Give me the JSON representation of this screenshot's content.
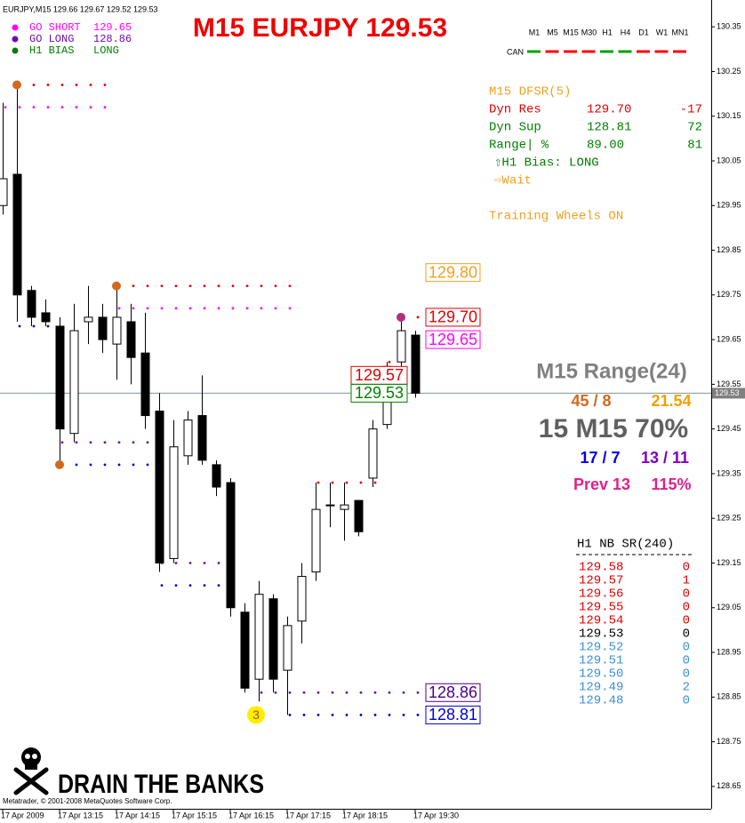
{
  "symbol_header": "EURJPY,M15  129.66 129.67 129.52 129.53",
  "signals": [
    {
      "label": "GO SHORT",
      "value": "129.65",
      "color": "#ff00ff"
    },
    {
      "label": "GO LONG",
      "value": "128.86",
      "color": "#6a0dad"
    },
    {
      "label": "H1 BIAS",
      "value": "LONG",
      "color": "#008000"
    }
  ],
  "timeframes": {
    "row_label": "CAN",
    "items": [
      {
        "label": "M1",
        "color": "#00a000"
      },
      {
        "label": "M5",
        "color": "#ff0000"
      },
      {
        "label": "M15",
        "color": "#ff0000"
      },
      {
        "label": "M30",
        "color": "#ff0000"
      },
      {
        "label": "H1",
        "color": "#00a000"
      },
      {
        "label": "H4",
        "color": "#00a000"
      },
      {
        "label": "D1",
        "color": "#ff0000"
      },
      {
        "label": "W1",
        "color": "#ff0000"
      },
      {
        "label": "MN1",
        "color": "#ff0000"
      }
    ]
  },
  "dfsr_panel": {
    "title": "M15 DFSR(5)",
    "rows": [
      {
        "cells": [
          "Dyn Res",
          "129.70",
          "-17"
        ],
        "color": "#e00000"
      },
      {
        "cells": [
          "Dyn Sup",
          "128.81",
          "72"
        ],
        "color": "#008000"
      },
      {
        "cells": [
          "Range| %",
          "89.00",
          "81"
        ],
        "color": "#008000"
      }
    ],
    "bias": "⇧H1 Bias: LONG",
    "action": "⇨Wait",
    "note": "Training Wheels ON"
  },
  "range_panel": {
    "title": "M15 Range(24)",
    "ratio": "45 / 8",
    "pips": "21.54",
    "main": "15  M15 70%",
    "count_a": "17 / 7",
    "count_b": "13 / 11",
    "prev": "Prev 13",
    "prev_pct": "115%"
  },
  "h1_table": {
    "title": "H1  NB  SR(240)",
    "rows": [
      {
        "cells": [
          "129.58",
          "0"
        ],
        "color": "#e00000"
      },
      {
        "cells": [
          "129.57",
          "1"
        ],
        "color": "#e00000"
      },
      {
        "cells": [
          "129.56",
          "0"
        ],
        "color": "#e00000"
      },
      {
        "cells": [
          "129.55",
          "0"
        ],
        "color": "#e00000"
      },
      {
        "cells": [
          "129.54",
          "0"
        ],
        "color": "#e00000"
      },
      {
        "cells": [
          "129.53",
          "0"
        ],
        "color": "#000000"
      },
      {
        "cells": [
          "129.52",
          "0"
        ],
        "color": "#3a8fd8"
      },
      {
        "cells": [
          "129.51",
          "0"
        ],
        "color": "#3a8fd8"
      },
      {
        "cells": [
          "129.50",
          "0"
        ],
        "color": "#3a8fd8"
      },
      {
        "cells": [
          "129.49",
          "2"
        ],
        "color": "#3a8fd8"
      },
      {
        "cells": [
          "129.48",
          "0"
        ],
        "color": "#3a8fd8"
      }
    ]
  },
  "logo": "DRAIN THE BANKS",
  "copyright": "Metatrader, © 2001-2008 MetaQuotes Software Corp.",
  "chart_data": {
    "type": "candlestick",
    "title": "M15 EURJPY 129.53",
    "categories": [
      "17 Apr 2009",
      null,
      null,
      null,
      "17 Apr 13:15",
      null,
      null,
      null,
      "17 Apr 14:15",
      null,
      null,
      null,
      "17 Apr 15:15",
      null,
      null,
      null,
      "17 Apr 16:15",
      null,
      null,
      null,
      "17 Apr 17:15",
      null,
      null,
      null,
      "17 Apr 18:15",
      null,
      null,
      null,
      null,
      "17 Apr 19:30"
    ],
    "open": [
      129.95,
      130.02,
      129.76,
      129.71,
      129.68,
      129.44,
      129.69,
      129.7,
      129.64,
      129.69,
      129.62,
      129.49,
      129.16,
      129.39,
      129.48,
      129.37,
      129.33,
      129.04,
      128.89,
      129.07,
      128.91,
      129.02,
      129.13,
      129.28,
      129.27,
      129.29,
      129.34,
      129.46,
      129.6,
      129.66
    ],
    "high": [
      130.18,
      130.22,
      129.77,
      129.74,
      129.7,
      129.73,
      129.77,
      129.73,
      129.77,
      129.73,
      129.71,
      129.53,
      129.47,
      129.49,
      129.57,
      129.38,
      129.34,
      129.06,
      129.11,
      129.08,
      129.03,
      129.15,
      129.33,
      129.33,
      129.33,
      129.29,
      129.47,
      129.6,
      129.7,
      129.67
    ],
    "low": [
      129.93,
      129.69,
      129.68,
      129.68,
      129.37,
      129.42,
      129.64,
      129.62,
      129.56,
      129.55,
      129.45,
      129.13,
      129.15,
      129.37,
      129.37,
      129.3,
      129.03,
      128.86,
      128.84,
      128.86,
      128.81,
      128.97,
      129.11,
      129.23,
      129.2,
      129.21,
      129.32,
      129.45,
      129.58,
      129.52
    ],
    "close": [
      130.01,
      129.75,
      129.7,
      129.69,
      129.45,
      129.67,
      129.7,
      129.65,
      129.7,
      129.61,
      129.48,
      129.15,
      129.41,
      129.47,
      129.38,
      129.32,
      129.05,
      128.87,
      129.08,
      128.89,
      129.01,
      129.12,
      129.27,
      129.28,
      129.28,
      129.22,
      129.45,
      129.59,
      129.67,
      129.53
    ],
    "up_color": "#ffffff",
    "down_color": "#000000",
    "dot_series": [
      {
        "color": "#e00000",
        "values": [
          null,
          130.22,
          130.22,
          130.22,
          130.22,
          130.22,
          130.22,
          130.22,
          129.77,
          129.77,
          129.77,
          129.77,
          129.77,
          129.77,
          129.77,
          129.77,
          129.77,
          129.77,
          129.77,
          129.77,
          129.77,
          null,
          129.33,
          129.33,
          129.33,
          129.33,
          129.33,
          129.6,
          129.7,
          129.7
        ]
      },
      {
        "color": "#ff00ff",
        "values": [
          130.17,
          130.17,
          130.17,
          130.17,
          130.17,
          130.17,
          130.17,
          130.17,
          129.72,
          129.72,
          129.72,
          129.72,
          129.72,
          129.72,
          129.72,
          129.72,
          129.72,
          129.72,
          129.72,
          129.72,
          129.72,
          null,
          null,
          null,
          null,
          null,
          null,
          null,
          129.65,
          129.65
        ]
      },
      {
        "color": "#6a0dad",
        "values": [
          null,
          null,
          null,
          null,
          129.42,
          129.42,
          129.42,
          129.42,
          129.42,
          129.42,
          129.42,
          129.15,
          129.15,
          129.15,
          129.15,
          129.15,
          null,
          null,
          128.86,
          128.86,
          128.86,
          128.86,
          128.86,
          128.86,
          128.86,
          128.86,
          128.86,
          128.86,
          128.86,
          128.86
        ]
      },
      {
        "color": "#0000cc",
        "values": [
          null,
          129.68,
          129.68,
          129.68,
          129.37,
          129.37,
          129.37,
          129.37,
          129.37,
          129.37,
          129.37,
          129.1,
          129.1,
          129.1,
          129.1,
          129.1,
          null,
          null,
          null,
          null,
          128.81,
          128.81,
          128.81,
          128.81,
          128.81,
          128.81,
          128.81,
          128.81,
          128.81,
          128.81
        ]
      }
    ],
    "markers": [
      {
        "x": 1,
        "y": 130.22,
        "color": "#d2691e"
      },
      {
        "x": 8,
        "y": 129.77,
        "color": "#d2691e"
      },
      {
        "x": 4,
        "y": 129.37,
        "color": "#d2691e"
      },
      {
        "x": 28,
        "y": 129.7,
        "color": "#b0307a"
      },
      {
        "x": 18,
        "y": 128.81,
        "color": "#ffee00",
        "label": "3"
      }
    ],
    "level_labels": [
      {
        "value": 129.8,
        "label": "129.80",
        "color": "#f0a020"
      },
      {
        "value": 129.7,
        "label": "129.70",
        "color": "#e00000"
      },
      {
        "value": 129.65,
        "label": "129.65",
        "color": "#ff00ff"
      },
      {
        "value": 128.86,
        "label": "128.86",
        "color": "#4b0082"
      },
      {
        "value": 128.81,
        "label": "128.81",
        "color": "#0000cc"
      }
    ],
    "price_labels": [
      {
        "value": 129.57,
        "label": "129.57",
        "color": "#e00000"
      },
      {
        "value": 129.53,
        "label": "129.53",
        "color": "#008000"
      }
    ],
    "current_price": {
      "value": 129.53,
      "label": "129.53"
    },
    "ylim": [
      128.6,
      130.41
    ],
    "yticks": [
      130.35,
      130.25,
      130.15,
      130.05,
      129.95,
      129.85,
      129.75,
      129.65,
      129.55,
      129.45,
      129.35,
      129.25,
      129.15,
      129.05,
      128.95,
      128.85,
      128.75,
      128.65
    ]
  }
}
